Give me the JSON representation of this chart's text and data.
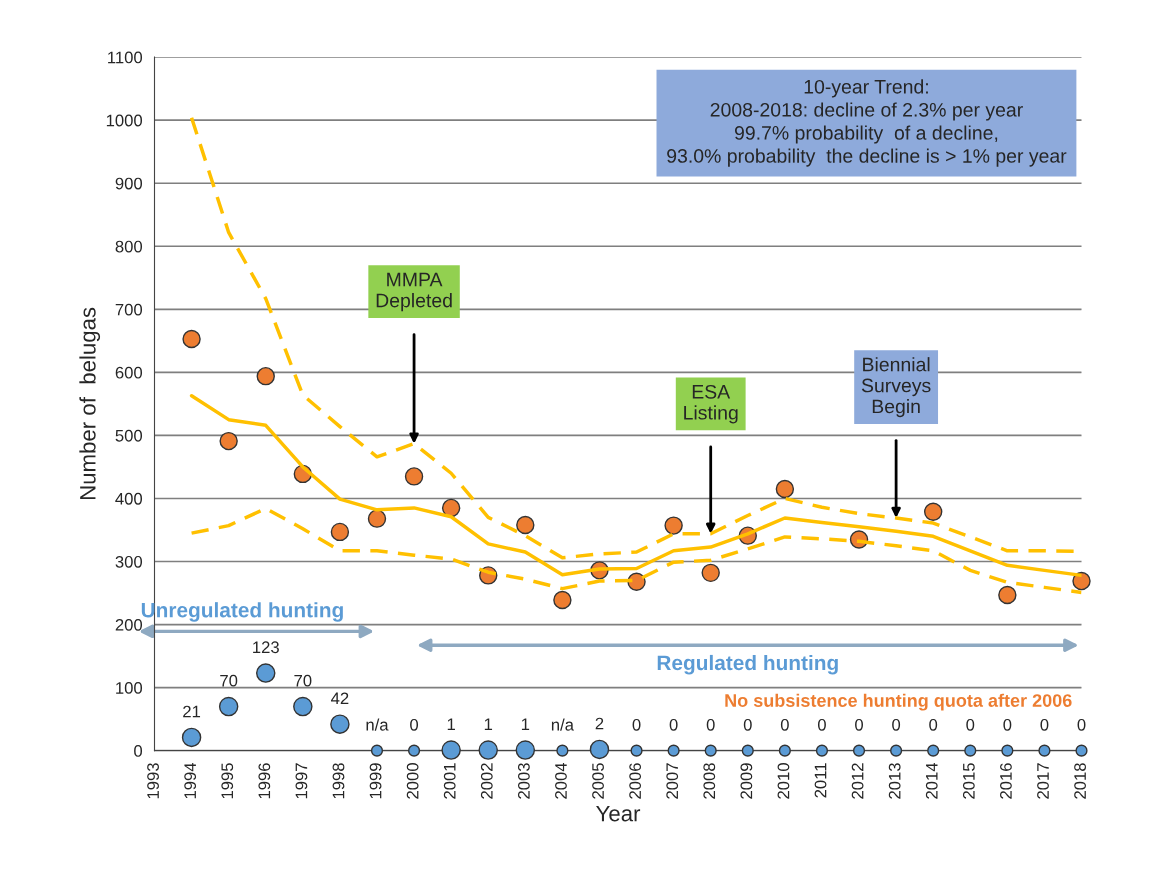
{
  "chart_data": {
    "type": "line",
    "xlabel": "Year",
    "ylabel": "Number of  belugas",
    "x": [
      1994,
      1995,
      1996,
      1997,
      1998,
      1999,
      2000,
      2001,
      2002,
      2003,
      2004,
      2005,
      2006,
      2007,
      2008,
      2009,
      2010,
      2011,
      2012,
      2013,
      2014,
      2015,
      2016,
      2017,
      2018
    ],
    "series": [
      {
        "color": "#ffc000",
        "line_style": "dashed",
        "marker": "none",
        "values": [
          1004,
          822,
          717,
          564,
          514,
          466,
          487,
          440,
          370,
          341,
          306,
          312,
          315,
          344,
          344,
          373,
          400,
          386,
          376,
          369,
          361,
          339,
          317,
          317,
          316
        ]
      },
      {
        "color": "#ffc000",
        "line_style": "dashed",
        "marker": "none",
        "values": [
          345,
          357,
          384,
          352,
          317,
          317,
          310,
          304,
          283,
          272,
          257,
          269,
          270,
          299,
          302,
          320,
          339,
          336,
          332,
          325,
          317,
          286,
          267,
          259,
          251
        ]
      },
      {
        "color": "#ffc000",
        "line_style": "solid",
        "marker": "none",
        "values": [
          563,
          525,
          516,
          450,
          399,
          382,
          385,
          371,
          328,
          315,
          279,
          288,
          289,
          317,
          323,
          344,
          369,
          362,
          355,
          348,
          340,
          317,
          294,
          286,
          278
        ]
      },
      {
        "type": "scatter",
        "color": "#ed7d31",
        "marker": "circle",
        "values": [
          653,
          491,
          594,
          439,
          347,
          368,
          435,
          385,
          278,
          358,
          239,
          286,
          268,
          357,
          282,
          341,
          415,
          null,
          335,
          null,
          379,
          null,
          247,
          null,
          269
        ]
      },
      {
        "type": "scatter",
        "color": "#5b9bd5",
        "marker": "circle",
        "values": [
          21,
          70,
          123,
          70,
          42,
          null,
          null,
          1,
          1,
          1,
          null,
          2,
          null,
          null,
          null,
          null,
          null,
          null,
          null,
          null,
          null,
          null,
          null,
          null,
          null
        ],
        "value_labels": [
          "21",
          "70",
          "123",
          "70",
          "42",
          null,
          null,
          "1",
          "1",
          "1",
          null,
          "2",
          null,
          null,
          null,
          null,
          null,
          null,
          null,
          null,
          null,
          null,
          null,
          null,
          null
        ]
      },
      {
        "type": "scatter",
        "color": "#5b9bd5",
        "marker": "circle",
        "values": [
          null,
          null,
          null,
          null,
          null,
          0,
          0,
          null,
          null,
          null,
          0,
          null,
          0,
          0,
          0,
          0,
          0,
          0,
          0,
          0,
          0,
          0,
          0,
          0,
          0
        ],
        "value_labels": [
          null,
          null,
          null,
          null,
          null,
          "n/a",
          "0",
          null,
          null,
          null,
          "n/a",
          null,
          "0",
          "0",
          "0",
          "0",
          "0",
          "0",
          "0",
          "0",
          "0",
          "0",
          "0",
          "0",
          "0"
        ]
      }
    ],
    "xlim": [
      1993,
      2018
    ],
    "xticks": [
      1993,
      1994,
      1995,
      1996,
      1997,
      1998,
      1999,
      2000,
      2001,
      2002,
      2003,
      2004,
      2005,
      2006,
      2007,
      2008,
      2009,
      2010,
      2011,
      2012,
      2013,
      2014,
      2015,
      2016,
      2017,
      2018
    ],
    "ylim": [
      0,
      1100
    ],
    "yticks": [
      0,
      100,
      200,
      300,
      400,
      500,
      600,
      700,
      800,
      900,
      1000,
      1100
    ],
    "grid": "y",
    "annotations": [
      "10-year Trend:\n2008-2018: decline of 2.3% per year\n99.7% probability  of a decline,\n93.0% probability  the decline is > 1% per year",
      {
        "text": "MMPA\nDepleted",
        "x": 2000,
        "y": 487
      },
      {
        "text": "ESA\nListing",
        "x": 2008,
        "y": 344
      },
      {
        "text": "Biennial\nSurveys\nBegin",
        "x": 2013,
        "y": 369
      },
      "No subsistence hunting quota after 2006",
      "Unregulated hunting",
      "Regulated hunting"
    ]
  }
}
